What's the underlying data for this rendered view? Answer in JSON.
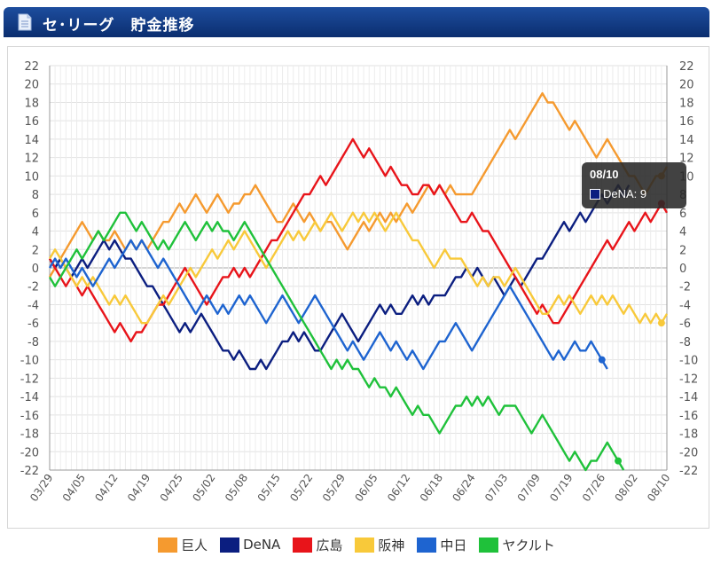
{
  "header": {
    "title": "セ･リーグ　貯金推移",
    "icon": "document-icon"
  },
  "chart_data": {
    "type": "line",
    "title": "セ･リーグ　貯金推移",
    "ylim": [
      -22,
      22
    ],
    "y_ticks": [
      22,
      20,
      18,
      16,
      14,
      12,
      10,
      8,
      6,
      4,
      2,
      0,
      -2,
      -4,
      -6,
      -8,
      -10,
      -12,
      -14,
      -16,
      -18,
      -20,
      -22
    ],
    "x_tick_labels": [
      "03/29",
      "04/05",
      "04/12",
      "04/19",
      "04/25",
      "05/02",
      "05/08",
      "05/15",
      "05/22",
      "05/29",
      "06/05",
      "06/12",
      "06/18",
      "06/24",
      "07/03",
      "07/09",
      "07/19",
      "07/26",
      "08/02",
      "08/10"
    ],
    "x_tick_games": [
      0,
      6,
      12,
      18,
      24,
      30,
      36,
      42,
      48,
      54,
      60,
      66,
      72,
      78,
      84,
      90,
      96,
      102,
      108,
      114
    ],
    "series": [
      {
        "name": "巨人",
        "color": "#f59a2f",
        "values": [
          -1,
          0,
          1,
          2,
          3,
          4,
          5,
          4,
          3,
          4,
          3,
          3,
          4,
          3,
          2,
          3,
          2,
          3,
          2,
          3,
          4,
          5,
          5,
          6,
          7,
          6,
          7,
          8,
          7,
          6,
          7,
          8,
          7,
          6,
          7,
          7,
          8,
          8,
          9,
          8,
          7,
          6,
          5,
          5,
          6,
          7,
          6,
          5,
          6,
          5,
          4,
          5,
          5,
          4,
          3,
          2,
          3,
          4,
          5,
          4,
          5,
          6,
          5,
          6,
          5,
          6,
          7,
          6,
          7,
          8,
          9,
          8,
          9,
          8,
          9,
          8,
          8,
          8,
          8,
          9,
          10,
          11,
          12,
          13,
          14,
          15,
          14,
          15,
          16,
          17,
          18,
          19,
          18,
          18,
          17,
          16,
          15,
          16,
          15,
          14,
          13,
          12,
          13,
          14,
          13,
          12,
          11,
          10,
          10,
          9,
          8,
          9,
          10,
          10,
          11
        ]
      },
      {
        "name": "DeNA",
        "color": "#0b1e80",
        "values": [
          1,
          0,
          1,
          0,
          -1,
          0,
          1,
          0,
          1,
          2,
          3,
          2,
          3,
          2,
          1,
          1,
          0,
          -1,
          -2,
          -2,
          -3,
          -4,
          -5,
          -6,
          -7,
          -6,
          -7,
          -6,
          -5,
          -6,
          -7,
          -8,
          -9,
          -9,
          -10,
          -9,
          -10,
          -11,
          -11,
          -10,
          -11,
          -10,
          -9,
          -8,
          -8,
          -7,
          -8,
          -7,
          -8,
          -9,
          -9,
          -8,
          -7,
          -6,
          -5,
          -6,
          -7,
          -8,
          -7,
          -6,
          -5,
          -4,
          -5,
          -4,
          -5,
          -5,
          -4,
          -3,
          -4,
          -3,
          -4,
          -3,
          -3,
          -3,
          -2,
          -1,
          -1,
          0,
          -1,
          0,
          -1,
          -2,
          -1,
          -2,
          -3,
          -2,
          -1,
          -2,
          -1,
          0,
          1,
          1,
          2,
          3,
          4,
          5,
          4,
          5,
          6,
          5,
          6,
          7,
          8,
          7,
          8,
          9,
          8,
          9
        ]
      },
      {
        "name": "広島",
        "color": "#e8141a",
        "values": [
          1,
          0,
          -1,
          -2,
          -1,
          -2,
          -3,
          -2,
          -3,
          -4,
          -5,
          -6,
          -7,
          -6,
          -7,
          -8,
          -7,
          -7,
          -6,
          -5,
          -4,
          -4,
          -3,
          -2,
          -1,
          0,
          -1,
          -2,
          -3,
          -4,
          -3,
          -2,
          -1,
          -1,
          0,
          -1,
          0,
          -1,
          0,
          1,
          2,
          3,
          3,
          4,
          5,
          6,
          7,
          8,
          8,
          9,
          10,
          9,
          10,
          11,
          12,
          13,
          14,
          13,
          12,
          13,
          12,
          11,
          10,
          11,
          10,
          9,
          9,
          8,
          8,
          9,
          9,
          8,
          9,
          8,
          7,
          6,
          5,
          5,
          6,
          5,
          4,
          4,
          3,
          2,
          1,
          0,
          -1,
          -2,
          -3,
          -4,
          -5,
          -4,
          -5,
          -6,
          -6,
          -5,
          -4,
          -3,
          -2,
          -1,
          0,
          1,
          2,
          3,
          2,
          3,
          4,
          5,
          4,
          5,
          6,
          5,
          6,
          7,
          6
        ]
      },
      {
        "name": "阪神",
        "color": "#f8c93a",
        "values": [
          1,
          2,
          1,
          0,
          -1,
          -2,
          -1,
          -2,
          -1,
          -2,
          -3,
          -4,
          -3,
          -4,
          -3,
          -4,
          -5,
          -6,
          -6,
          -5,
          -4,
          -3,
          -4,
          -3,
          -2,
          -1,
          0,
          -1,
          0,
          1,
          2,
          1,
          2,
          3,
          2,
          3,
          4,
          3,
          2,
          1,
          0,
          1,
          2,
          3,
          4,
          3,
          4,
          3,
          4,
          5,
          4,
          5,
          6,
          5,
          4,
          5,
          6,
          5,
          6,
          5,
          6,
          5,
          4,
          5,
          6,
          5,
          4,
          3,
          3,
          2,
          1,
          0,
          1,
          2,
          1,
          1,
          1,
          0,
          -1,
          -2,
          -1,
          -2,
          -1,
          -1,
          -2,
          -1,
          0,
          -1,
          -2,
          -3,
          -4,
          -5,
          -5,
          -4,
          -3,
          -4,
          -3,
          -4,
          -5,
          -4,
          -3,
          -4,
          -3,
          -4,
          -3,
          -4,
          -5,
          -4,
          -5,
          -6,
          -5,
          -6,
          -5,
          -6,
          -5
        ]
      },
      {
        "name": "中日",
        "color": "#1e64d0",
        "values": [
          0,
          1,
          0,
          1,
          0,
          -1,
          0,
          -1,
          -2,
          -1,
          0,
          1,
          0,
          1,
          2,
          3,
          2,
          3,
          2,
          1,
          0,
          1,
          0,
          -1,
          -2,
          -3,
          -4,
          -5,
          -4,
          -3,
          -4,
          -5,
          -4,
          -5,
          -4,
          -3,
          -4,
          -3,
          -4,
          -5,
          -6,
          -5,
          -4,
          -3,
          -4,
          -5,
          -6,
          -5,
          -4,
          -3,
          -4,
          -5,
          -6,
          -7,
          -8,
          -9,
          -8,
          -9,
          -10,
          -9,
          -8,
          -7,
          -8,
          -9,
          -8,
          -9,
          -10,
          -9,
          -10,
          -11,
          -10,
          -9,
          -8,
          -8,
          -7,
          -6,
          -7,
          -8,
          -9,
          -8,
          -7,
          -6,
          -5,
          -4,
          -3,
          -2,
          -3,
          -4,
          -5,
          -6,
          -7,
          -8,
          -9,
          -10,
          -9,
          -10,
          -9,
          -8,
          -9,
          -9,
          -8,
          -9,
          -10,
          -11
        ]
      },
      {
        "name": "ヤクルト",
        "color": "#1fc13a",
        "values": [
          -1,
          -2,
          -1,
          0,
          1,
          2,
          1,
          2,
          3,
          4,
          3,
          4,
          5,
          6,
          6,
          5,
          4,
          5,
          4,
          3,
          2,
          3,
          2,
          3,
          4,
          5,
          4,
          3,
          4,
          5,
          4,
          5,
          4,
          4,
          3,
          4,
          5,
          4,
          3,
          2,
          1,
          0,
          -1,
          -2,
          -3,
          -4,
          -5,
          -6,
          -7,
          -8,
          -9,
          -10,
          -11,
          -10,
          -11,
          -10,
          -11,
          -11,
          -12,
          -13,
          -12,
          -13,
          -13,
          -14,
          -13,
          -14,
          -15,
          -16,
          -15,
          -16,
          -16,
          -17,
          -18,
          -17,
          -16,
          -15,
          -15,
          -14,
          -15,
          -14,
          -15,
          -14,
          -15,
          -16,
          -15,
          -15,
          -15,
          -16,
          -17,
          -18,
          -17,
          -16,
          -17,
          -18,
          -19,
          -20,
          -21,
          -20,
          -21,
          -22,
          -21,
          -21,
          -20,
          -19,
          -20,
          -21,
          -22
        ]
      }
    ],
    "tooltip": {
      "date": "08/10",
      "series": "DeNA",
      "value": 9,
      "text": "DeNA: 9"
    }
  }
}
